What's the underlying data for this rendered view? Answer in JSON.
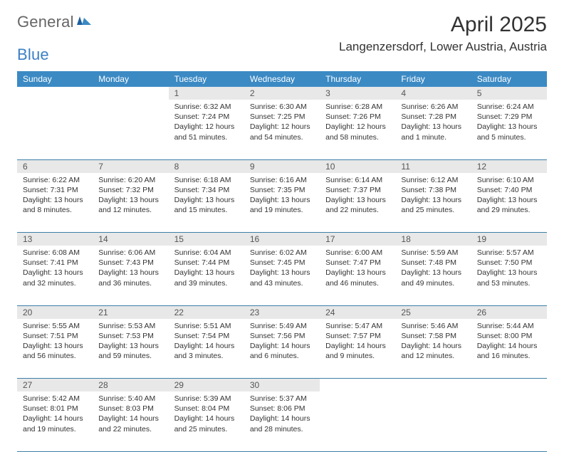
{
  "logo": {
    "text1": "General",
    "text2": "Blue"
  },
  "title": "April 2025",
  "location": "Langenzersdorf, Lower Austria, Austria",
  "colors": {
    "header_bg": "#3b8ac4",
    "header_text": "#ffffff",
    "daynum_bg": "#e8e8e8",
    "daynum_text": "#555555",
    "rule": "#3b7fa8",
    "body_text": "#333333",
    "logo_gray": "#666666",
    "logo_blue": "#3b7fc4"
  },
  "fonts": {
    "title_pt": 30,
    "location_pt": 17,
    "weekday_pt": 12,
    "daynum_pt": 12,
    "cell_pt": 10.5
  },
  "weekdays": [
    "Sunday",
    "Monday",
    "Tuesday",
    "Wednesday",
    "Thursday",
    "Friday",
    "Saturday"
  ],
  "weeks": [
    [
      null,
      null,
      {
        "n": "1",
        "sr": "Sunrise: 6:32 AM",
        "ss": "Sunset: 7:24 PM",
        "dl": "Daylight: 12 hours and 51 minutes."
      },
      {
        "n": "2",
        "sr": "Sunrise: 6:30 AM",
        "ss": "Sunset: 7:25 PM",
        "dl": "Daylight: 12 hours and 54 minutes."
      },
      {
        "n": "3",
        "sr": "Sunrise: 6:28 AM",
        "ss": "Sunset: 7:26 PM",
        "dl": "Daylight: 12 hours and 58 minutes."
      },
      {
        "n": "4",
        "sr": "Sunrise: 6:26 AM",
        "ss": "Sunset: 7:28 PM",
        "dl": "Daylight: 13 hours and 1 minute."
      },
      {
        "n": "5",
        "sr": "Sunrise: 6:24 AM",
        "ss": "Sunset: 7:29 PM",
        "dl": "Daylight: 13 hours and 5 minutes."
      }
    ],
    [
      {
        "n": "6",
        "sr": "Sunrise: 6:22 AM",
        "ss": "Sunset: 7:31 PM",
        "dl": "Daylight: 13 hours and 8 minutes."
      },
      {
        "n": "7",
        "sr": "Sunrise: 6:20 AM",
        "ss": "Sunset: 7:32 PM",
        "dl": "Daylight: 13 hours and 12 minutes."
      },
      {
        "n": "8",
        "sr": "Sunrise: 6:18 AM",
        "ss": "Sunset: 7:34 PM",
        "dl": "Daylight: 13 hours and 15 minutes."
      },
      {
        "n": "9",
        "sr": "Sunrise: 6:16 AM",
        "ss": "Sunset: 7:35 PM",
        "dl": "Daylight: 13 hours and 19 minutes."
      },
      {
        "n": "10",
        "sr": "Sunrise: 6:14 AM",
        "ss": "Sunset: 7:37 PM",
        "dl": "Daylight: 13 hours and 22 minutes."
      },
      {
        "n": "11",
        "sr": "Sunrise: 6:12 AM",
        "ss": "Sunset: 7:38 PM",
        "dl": "Daylight: 13 hours and 25 minutes."
      },
      {
        "n": "12",
        "sr": "Sunrise: 6:10 AM",
        "ss": "Sunset: 7:40 PM",
        "dl": "Daylight: 13 hours and 29 minutes."
      }
    ],
    [
      {
        "n": "13",
        "sr": "Sunrise: 6:08 AM",
        "ss": "Sunset: 7:41 PM",
        "dl": "Daylight: 13 hours and 32 minutes."
      },
      {
        "n": "14",
        "sr": "Sunrise: 6:06 AM",
        "ss": "Sunset: 7:43 PM",
        "dl": "Daylight: 13 hours and 36 minutes."
      },
      {
        "n": "15",
        "sr": "Sunrise: 6:04 AM",
        "ss": "Sunset: 7:44 PM",
        "dl": "Daylight: 13 hours and 39 minutes."
      },
      {
        "n": "16",
        "sr": "Sunrise: 6:02 AM",
        "ss": "Sunset: 7:45 PM",
        "dl": "Daylight: 13 hours and 43 minutes."
      },
      {
        "n": "17",
        "sr": "Sunrise: 6:00 AM",
        "ss": "Sunset: 7:47 PM",
        "dl": "Daylight: 13 hours and 46 minutes."
      },
      {
        "n": "18",
        "sr": "Sunrise: 5:59 AM",
        "ss": "Sunset: 7:48 PM",
        "dl": "Daylight: 13 hours and 49 minutes."
      },
      {
        "n": "19",
        "sr": "Sunrise: 5:57 AM",
        "ss": "Sunset: 7:50 PM",
        "dl": "Daylight: 13 hours and 53 minutes."
      }
    ],
    [
      {
        "n": "20",
        "sr": "Sunrise: 5:55 AM",
        "ss": "Sunset: 7:51 PM",
        "dl": "Daylight: 13 hours and 56 minutes."
      },
      {
        "n": "21",
        "sr": "Sunrise: 5:53 AM",
        "ss": "Sunset: 7:53 PM",
        "dl": "Daylight: 13 hours and 59 minutes."
      },
      {
        "n": "22",
        "sr": "Sunrise: 5:51 AM",
        "ss": "Sunset: 7:54 PM",
        "dl": "Daylight: 14 hours and 3 minutes."
      },
      {
        "n": "23",
        "sr": "Sunrise: 5:49 AM",
        "ss": "Sunset: 7:56 PM",
        "dl": "Daylight: 14 hours and 6 minutes."
      },
      {
        "n": "24",
        "sr": "Sunrise: 5:47 AM",
        "ss": "Sunset: 7:57 PM",
        "dl": "Daylight: 14 hours and 9 minutes."
      },
      {
        "n": "25",
        "sr": "Sunrise: 5:46 AM",
        "ss": "Sunset: 7:58 PM",
        "dl": "Daylight: 14 hours and 12 minutes."
      },
      {
        "n": "26",
        "sr": "Sunrise: 5:44 AM",
        "ss": "Sunset: 8:00 PM",
        "dl": "Daylight: 14 hours and 16 minutes."
      }
    ],
    [
      {
        "n": "27",
        "sr": "Sunrise: 5:42 AM",
        "ss": "Sunset: 8:01 PM",
        "dl": "Daylight: 14 hours and 19 minutes."
      },
      {
        "n": "28",
        "sr": "Sunrise: 5:40 AM",
        "ss": "Sunset: 8:03 PM",
        "dl": "Daylight: 14 hours and 22 minutes."
      },
      {
        "n": "29",
        "sr": "Sunrise: 5:39 AM",
        "ss": "Sunset: 8:04 PM",
        "dl": "Daylight: 14 hours and 25 minutes."
      },
      {
        "n": "30",
        "sr": "Sunrise: 5:37 AM",
        "ss": "Sunset: 8:06 PM",
        "dl": "Daylight: 14 hours and 28 minutes."
      },
      null,
      null,
      null
    ]
  ]
}
